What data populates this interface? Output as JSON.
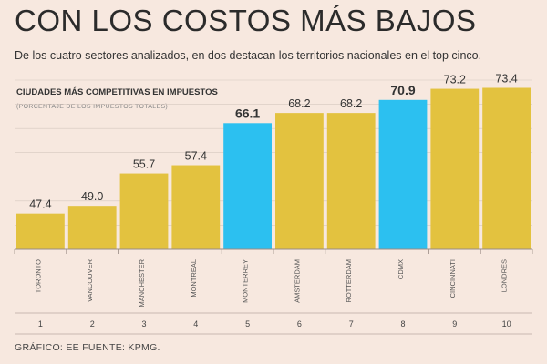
{
  "header": {
    "title": "CON LOS COSTOS MÁS BAJOS",
    "subtitle": "De los cuatro sectores analizados, en dos destacan los territorios nacionales en el top cinco."
  },
  "footer": {
    "source": "GRÁFICO: EE  FUENTE: KPMG."
  },
  "colors": {
    "background": "#f7e8df",
    "bar_default": "#e3c23f",
    "bar_highlight": "#2cc0f0",
    "grid": "#d6c7bf",
    "text": "#333333"
  },
  "chart_data": {
    "type": "bar",
    "title": "CIUDADES MÁS COMPETITIVAS EN IMPUESTOS",
    "subtitle": "(PORCENTAJE DE LOS IMPUESTOS TOTALES)",
    "xlabel": "",
    "ylabel": "",
    "ylim": [
      40,
      75
    ],
    "grid": true,
    "categories": [
      "TORONTO",
      "VANCOUVER",
      "MANCHESTER",
      "MONTREAL",
      "MONTERREY",
      "AMSTERDAM",
      "ROTTERDAM",
      "CDMX",
      "CINCINNATI",
      "LONDRES"
    ],
    "ranks": [
      "1",
      "2",
      "3",
      "4",
      "5",
      "6",
      "7",
      "8",
      "9",
      "10"
    ],
    "values": [
      47.4,
      49.0,
      55.7,
      57.4,
      66.1,
      68.2,
      68.2,
      70.9,
      73.2,
      73.4
    ],
    "value_labels": [
      "47.4",
      "49.0",
      "55.7",
      "57.4",
      "66.1",
      "68.2",
      "68.2",
      "70.9",
      "73.2",
      "73.4"
    ],
    "highlighted": [
      "MONTERREY",
      "CDMX"
    ]
  }
}
